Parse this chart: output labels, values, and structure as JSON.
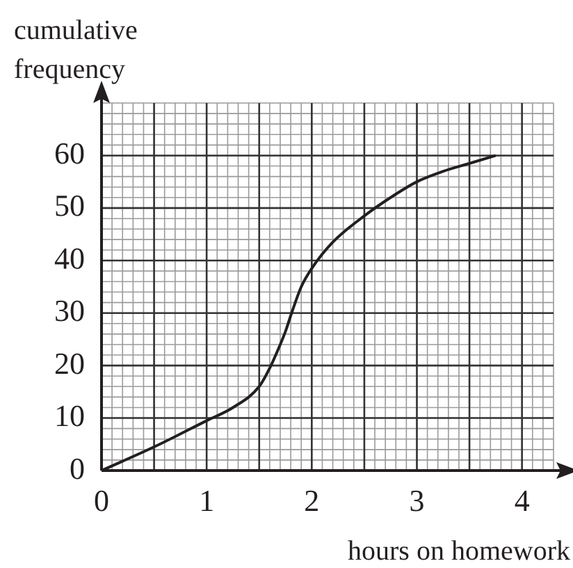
{
  "chart_data": {
    "type": "line",
    "xlabel": "hours on homework",
    "ylabel": "cumulative frequency",
    "x": [
      0,
      0.5,
      1,
      1.25,
      1.5,
      1.6,
      1.7,
      1.75,
      1.8,
      1.9,
      2,
      2.2,
      2.5,
      2.75,
      3,
      3.25,
      3.5,
      3.75
    ],
    "series": [
      {
        "color": "#231f20",
        "values": [
          0,
          4.5,
          9.5,
          12,
          16,
          19.5,
          24,
          26.5,
          29.5,
          35,
          38.5,
          43.5,
          48.5,
          52,
          55,
          57,
          58.5,
          60
        ]
      }
    ],
    "xlim": [
      0,
      4.3
    ],
    "ylim": [
      0,
      70
    ],
    "xticks": [
      0,
      {
        "value": 0.5,
        "label": null
      },
      1,
      {
        "value": 1.5,
        "label": null
      },
      2,
      {
        "value": 2.5,
        "label": null
      },
      3,
      {
        "value": 3.5,
        "label": null
      },
      4
    ],
    "yticks": [
      0,
      10,
      20,
      30,
      40,
      50,
      60
    ],
    "grid": true,
    "legend": false,
    "marker": "none",
    "line_style": "solid"
  }
}
